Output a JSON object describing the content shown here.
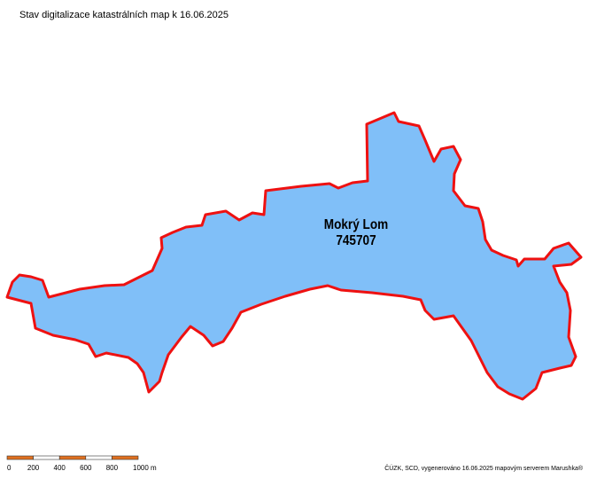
{
  "header": {
    "title": "Stav digitalizace katastrálních map k 16.06.2025"
  },
  "region": {
    "name": "Mokrý Lom",
    "code": "745707"
  },
  "scale_bar": {
    "labels": [
      "0",
      "200",
      "400",
      "600",
      "800",
      "1000 m"
    ]
  },
  "footer": {
    "credits": "ČÚZK, SCD, vygenerováno 16.06.2025 mapovým serverem Marushka®"
  }
}
